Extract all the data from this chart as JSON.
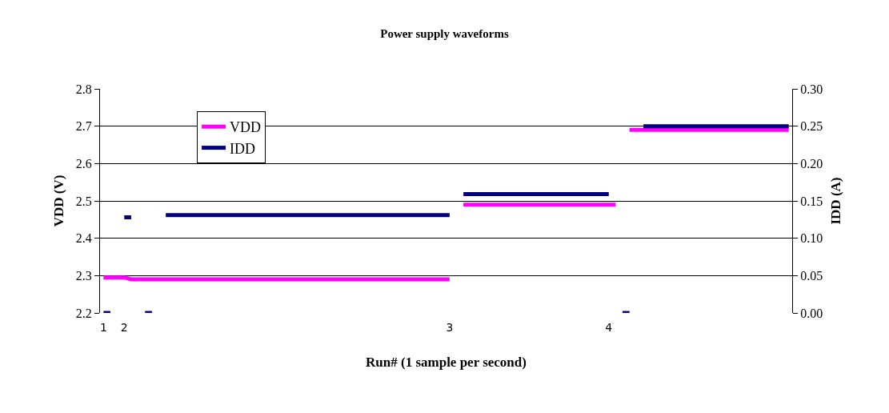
{
  "chart_data": {
    "type": "line",
    "title": "Power supply waveforms",
    "xlabel": "Run# (1 sample per second)",
    "ylabel": "VDD (V)",
    "y2label": "IDD (A)",
    "categories": [
      "1",
      null,
      null,
      "2",
      null,
      null,
      null,
      null,
      null,
      null,
      null,
      null,
      null,
      null,
      null,
      null,
      null,
      null,
      null,
      null,
      null,
      null,
      null,
      null,
      null,
      null,
      null,
      null,
      null,
      null,
      null,
      null,
      null,
      null,
      null,
      null,
      null,
      null,
      null,
      null,
      null,
      null,
      null,
      null,
      null,
      null,
      null,
      null,
      null,
      null,
      "3",
      null,
      null,
      null,
      null,
      null,
      null,
      null,
      null,
      null,
      null,
      null,
      null,
      null,
      null,
      null,
      null,
      null,
      null,
      null,
      null,
      null,
      null,
      "4",
      null,
      null,
      null,
      null,
      null,
      null,
      null,
      null,
      null,
      null,
      null,
      null,
      null,
      null,
      null,
      null,
      null,
      null,
      null,
      null,
      null,
      null,
      null,
      null,
      null,
      null
    ],
    "ylim": [
      2.2,
      2.8
    ],
    "yticks": [
      2.2,
      2.3,
      2.4,
      2.5,
      2.6,
      2.7,
      2.8
    ],
    "y2lim": [
      0,
      0.3
    ],
    "y2ticks": [
      {
        "value": 0,
        "label": "0.00"
      },
      {
        "value": 0.05,
        "label": "0.05"
      },
      {
        "value": 0.1,
        "label": "0.10"
      },
      {
        "value": 0.15,
        "label": "0.15"
      },
      {
        "value": 0.2,
        "label": "0.20"
      },
      {
        "value": 0.25,
        "label": "0.25"
      },
      {
        "value": 0.3,
        "label": "0.30"
      }
    ],
    "grid": "y",
    "legend": "top left",
    "marker": "none",
    "line_style": "solid",
    "series": [
      {
        "name": "VDD",
        "color": "#ff00ff",
        "values": [
          2.295,
          2.295,
          2.295,
          2.295,
          2.29,
          2.29,
          2.29,
          2.29,
          2.29,
          2.29,
          2.29,
          2.29,
          2.29,
          2.29,
          2.29,
          2.29,
          2.29,
          2.29,
          2.29,
          2.29,
          2.29,
          2.29,
          2.29,
          2.29,
          2.29,
          2.29,
          2.29,
          2.29,
          2.29,
          2.29,
          2.29,
          2.29,
          2.29,
          2.29,
          2.29,
          2.29,
          2.29,
          2.29,
          2.29,
          2.29,
          2.29,
          2.29,
          2.29,
          2.29,
          2.29,
          2.29,
          2.29,
          2.29,
          2.29,
          2.29,
          2.29,
          null,
          2.49,
          2.49,
          2.49,
          2.49,
          2.49,
          2.49,
          2.49,
          2.49,
          2.49,
          2.49,
          2.49,
          2.49,
          2.49,
          2.49,
          2.49,
          2.49,
          2.49,
          2.49,
          2.49,
          2.49,
          2.49,
          2.49,
          2.49,
          null,
          2.69,
          2.69,
          2.69,
          2.69,
          2.69,
          2.69,
          2.69,
          2.69,
          2.69,
          2.69,
          2.69,
          2.69,
          2.69,
          2.69,
          2.69,
          2.69,
          2.69,
          2.69,
          2.69,
          2.69,
          2.69,
          2.69,
          2.69,
          2.69
        ]
      },
      {
        "name": "IDD",
        "color": "#000080",
        "axis": "y2",
        "values": [
          0,
          0,
          null,
          0.128,
          0.128,
          null,
          0,
          0,
          null,
          0.131,
          0.131,
          0.131,
          0.131,
          0.131,
          0.131,
          0.131,
          0.131,
          0.131,
          0.131,
          0.131,
          0.131,
          0.131,
          0.131,
          0.131,
          0.131,
          0.131,
          0.131,
          0.131,
          0.131,
          0.131,
          0.131,
          0.131,
          0.131,
          0.131,
          0.131,
          0.131,
          0.131,
          0.131,
          0.131,
          0.131,
          0.131,
          0.131,
          0.131,
          0.131,
          0.131,
          0.131,
          0.131,
          0.131,
          0.131,
          0.131,
          0.131,
          null,
          0.159,
          0.159,
          0.159,
          0.159,
          0.159,
          0.159,
          0.159,
          0.159,
          0.159,
          0.159,
          0.159,
          0.159,
          0.159,
          0.159,
          0.159,
          0.159,
          0.159,
          0.159,
          0.159,
          0.159,
          0.159,
          0.159,
          null,
          0,
          0,
          null,
          0.25,
          0.25,
          0.25,
          0.25,
          0.25,
          0.25,
          0.25,
          0.25,
          0.25,
          0.25,
          0.25,
          0.25,
          0.25,
          0.25,
          0.25,
          0.25,
          0.25,
          0.25,
          0.25,
          0.25,
          0.25,
          0.25
        ]
      }
    ]
  }
}
